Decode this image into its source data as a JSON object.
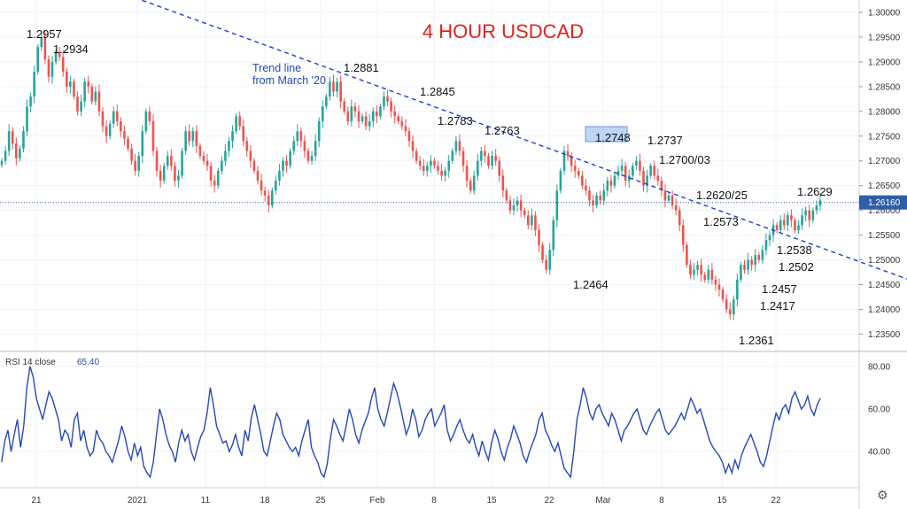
{
  "chart_data": {
    "type": "candlestick",
    "title": "4 HOUR USDCAD",
    "price_axis": {
      "ticks": [
        "1.30000",
        "1.29500",
        "1.29000",
        "1.28500",
        "1.28000",
        "1.27500",
        "1.27000",
        "1.26500",
        "1.26000",
        "1.25500",
        "1.25000",
        "1.24500",
        "1.24000",
        "1.23500"
      ],
      "ylim": [
        1.2315,
        1.3025
      ]
    },
    "current_price": "1.26160",
    "time_axis": {
      "ticks": [
        "21",
        "2021",
        "11",
        "18",
        "25",
        "Feb",
        "8",
        "15",
        "22",
        "Mar",
        "8",
        "15",
        "22"
      ]
    },
    "trend_line": {
      "label_line1": "Trend line",
      "label_line2": "from March '20",
      "points": [
        [
          0.0,
          1.303
        ],
        [
          235,
          1.2515
        ]
      ]
    },
    "annotations": [
      {
        "text": "1.2957",
        "x": 10,
        "y": 1.2957
      },
      {
        "text": "1.2934",
        "x": 14,
        "y": 1.2934
      },
      {
        "text": "1.2881",
        "x": 93,
        "y": 1.2881
      },
      {
        "text": "1.2845",
        "x": 117,
        "y": 1.2845
      },
      {
        "text": "1.2783",
        "x": 126,
        "y": 1.2783
      },
      {
        "text": "1.2763",
        "x": 141,
        "y": 1.2763
      },
      {
        "text": "1.2748",
        "x": 173,
        "y": 1.2748
      },
      {
        "text": "1.2737",
        "x": 188,
        "y": 1.2737
      },
      {
        "text": "1.2700/03",
        "x": 191,
        "y": 1.27
      },
      {
        "text": "1.2620/25",
        "x": 200,
        "y": 1.262
      },
      {
        "text": "1.2573",
        "x": 202,
        "y": 1.2573
      },
      {
        "text": "1.2464",
        "x": 167,
        "y": 1.2464
      },
      {
        "text": "1.2629",
        "x": 231,
        "y": 1.2629
      },
      {
        "text": "1.2538",
        "x": 231,
        "y": 1.2538
      },
      {
        "text": "1.2502",
        "x": 225,
        "y": 1.2502
      },
      {
        "text": "1.2457",
        "x": 220,
        "y": 1.2457
      },
      {
        "text": "1.2417",
        "x": 219,
        "y": 1.2417
      },
      {
        "text": "1.2361",
        "x": 214,
        "y": 1.2361
      }
    ],
    "closes": [
      1.27,
      1.272,
      1.276,
      1.2735,
      1.2705,
      1.2725,
      1.276,
      1.281,
      1.283,
      1.288,
      1.293,
      1.295,
      1.2905,
      1.287,
      1.29,
      1.292,
      1.291,
      1.288,
      1.285,
      1.286,
      1.283,
      1.28,
      1.282,
      1.286,
      1.285,
      1.282,
      1.284,
      1.28,
      1.277,
      1.275,
      1.2775,
      1.28,
      1.278,
      1.276,
      1.2745,
      1.2725,
      1.27,
      1.268,
      1.271,
      1.276,
      1.28,
      1.278,
      1.272,
      1.268,
      1.266,
      1.269,
      1.271,
      1.269,
      1.266,
      1.267,
      1.272,
      1.276,
      1.274,
      1.276,
      1.273,
      1.271,
      1.27,
      1.269,
      1.266,
      1.265,
      1.268,
      1.27,
      1.272,
      1.274,
      1.276,
      1.279,
      1.277,
      1.274,
      1.272,
      1.27,
      1.268,
      1.266,
      1.264,
      1.263,
      1.261,
      1.264,
      1.266,
      1.268,
      1.27,
      1.269,
      1.272,
      1.274,
      1.276,
      1.274,
      1.272,
      1.27,
      1.271,
      1.274,
      1.278,
      1.281,
      1.283,
      1.286,
      1.284,
      1.286,
      1.282,
      1.28,
      1.278,
      1.281,
      1.28,
      1.278,
      1.279,
      1.277,
      1.278,
      1.28,
      1.279,
      1.281,
      1.283,
      1.282,
      1.28,
      1.279,
      1.278,
      1.277,
      1.276,
      1.274,
      1.272,
      1.27,
      1.269,
      1.268,
      1.269,
      1.27,
      1.269,
      1.268,
      1.267,
      1.268,
      1.27,
      1.272,
      1.274,
      1.272,
      1.269,
      1.266,
      1.264,
      1.267,
      1.27,
      1.272,
      1.271,
      1.269,
      1.271,
      1.27,
      1.267,
      1.264,
      1.262,
      1.26,
      1.261,
      1.262,
      1.26,
      1.259,
      1.257,
      1.259,
      1.256,
      1.253,
      1.25,
      1.248,
      1.252,
      1.258,
      1.264,
      1.268,
      1.272,
      1.271,
      1.269,
      1.268,
      1.267,
      1.265,
      1.264,
      1.262,
      1.261,
      1.263,
      1.262,
      1.264,
      1.266,
      1.265,
      1.267,
      1.268,
      1.269,
      1.266,
      1.267,
      1.269,
      1.27,
      1.268,
      1.265,
      1.267,
      1.269,
      1.267,
      1.266,
      1.264,
      1.262,
      1.263,
      1.261,
      1.26,
      1.257,
      1.253,
      1.249,
      1.247,
      1.248,
      1.249,
      1.247,
      1.246,
      1.248,
      1.246,
      1.245,
      1.244,
      1.242,
      1.24,
      1.239,
      1.242,
      1.246,
      1.249,
      1.248,
      1.25,
      1.249,
      1.251,
      1.25,
      1.252,
      1.254,
      1.255,
      1.257,
      1.256,
      1.258,
      1.257,
      1.259,
      1.258,
      1.256,
      1.257,
      1.259,
      1.26,
      1.258,
      1.26,
      1.261,
      1.262
    ],
    "rsi": {
      "label": "RSI 14 close",
      "value": "65.40",
      "ticks": [
        "80.00",
        "60.00",
        "40.00"
      ],
      "ylim": [
        23,
        87
      ],
      "values": [
        35,
        45,
        50,
        40,
        48,
        55,
        42,
        52,
        70,
        80,
        75,
        65,
        60,
        55,
        62,
        68,
        65,
        60,
        55,
        45,
        50,
        48,
        42,
        55,
        58,
        45,
        50,
        42,
        38,
        40,
        50,
        46,
        44,
        40,
        38,
        35,
        40,
        45,
        52,
        47,
        40,
        36,
        44,
        38,
        42,
        33,
        30,
        28,
        35,
        48,
        60,
        55,
        48,
        43,
        40,
        35,
        44,
        50,
        45,
        48,
        40,
        36,
        42,
        47,
        50,
        58,
        70,
        62,
        52,
        48,
        44,
        45,
        40,
        43,
        48,
        42,
        38,
        50,
        45,
        56,
        62,
        55,
        48,
        40,
        38,
        45,
        52,
        58,
        55,
        48,
        45,
        42,
        40,
        42,
        38,
        45,
        50,
        55,
        42,
        38,
        35,
        30,
        28,
        34,
        46,
        55,
        52,
        48,
        45,
        52,
        60,
        55,
        48,
        44,
        50,
        54,
        58,
        65,
        70,
        60,
        55,
        52,
        58,
        65,
        72,
        68,
        62,
        55,
        48,
        52,
        60,
        55,
        47,
        50,
        55,
        58,
        60,
        52,
        55,
        58,
        62,
        50,
        45,
        48,
        52,
        55,
        50,
        46,
        44,
        48,
        42,
        38,
        45,
        40,
        36,
        44,
        50,
        46,
        40,
        36,
        42,
        46,
        52,
        48,
        44,
        38,
        35,
        40,
        44,
        48,
        55,
        58,
        50,
        47,
        43,
        40,
        44,
        38,
        32,
        30,
        28,
        40,
        55,
        62,
        70,
        65,
        58,
        55,
        60,
        62,
        58,
        55,
        52,
        58,
        55,
        50,
        45,
        50,
        52,
        55,
        58,
        60,
        55,
        50,
        48,
        52,
        55,
        58,
        60,
        55,
        50,
        48,
        50,
        52,
        55,
        58,
        55,
        60,
        65,
        62,
        58,
        60,
        55,
        50,
        45,
        42,
        40,
        38,
        35,
        30,
        34,
        30,
        36,
        32,
        38,
        42,
        45,
        48,
        44,
        40,
        35,
        33,
        38,
        45,
        52,
        58,
        55,
        60,
        62,
        58,
        65,
        68,
        64,
        60,
        62,
        66,
        60,
        57,
        62,
        65
      ],
      "color": "#2748b8"
    },
    "colors": {
      "up": "#26a69a",
      "down": "#ef5350",
      "trend": "#1f3fd6",
      "rsi": "#2748b8",
      "price_tag": "#2f5ea8",
      "highlight": "#bcd5f5"
    }
  },
  "title": "4 HOUR USDCAD"
}
